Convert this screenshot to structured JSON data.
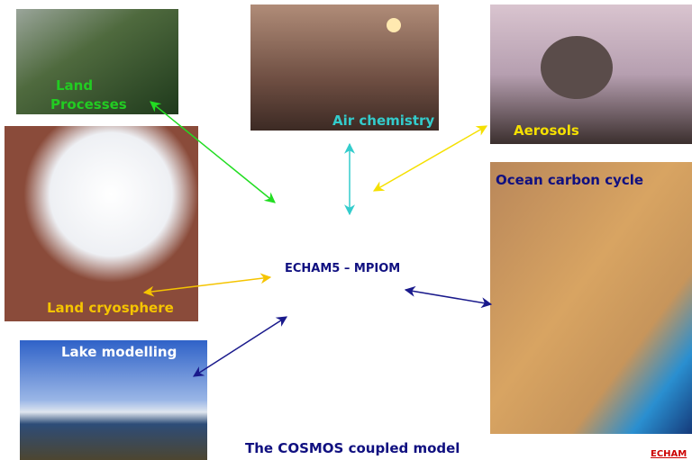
{
  "title": "The COSMOS coupled model",
  "center": "ECHAM5 – MPIOM",
  "footer": "ECHAM",
  "nodes": [
    {
      "lines": [
        "Land",
        "Processes"
      ]
    },
    {
      "lines": [
        "Air chemistry"
      ]
    },
    {
      "lines": [
        "Aerosols"
      ]
    },
    {
      "lines": [
        "Ocean carbon cycle"
      ]
    },
    {
      "lines": [
        "Land cryosphere"
      ]
    },
    {
      "lines": [
        "Lake modelling"
      ]
    }
  ]
}
